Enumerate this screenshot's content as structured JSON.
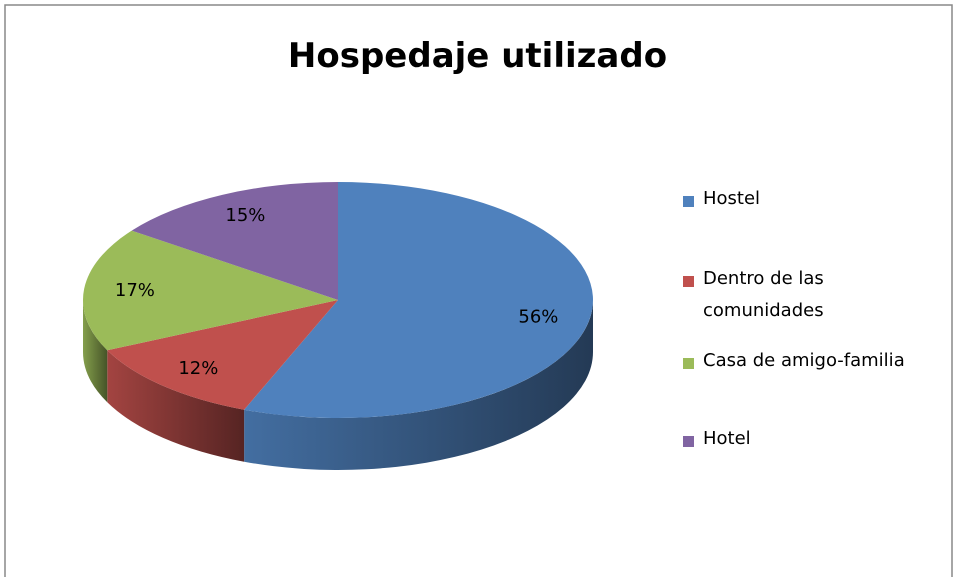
{
  "chart_data": {
    "type": "pie",
    "title": "Hospedaje utilizado",
    "categories": [
      "Hostel",
      "Dentro de las comunidades",
      "Casa de amigo-familia",
      "Hotel"
    ],
    "values": [
      56,
      12,
      17,
      15
    ],
    "value_labels": [
      "56%",
      "12%",
      "17%",
      "15%"
    ],
    "colors": [
      "#4f81bd",
      "#c0504d",
      "#9bbb59",
      "#8064a2"
    ],
    "legend": "right"
  }
}
